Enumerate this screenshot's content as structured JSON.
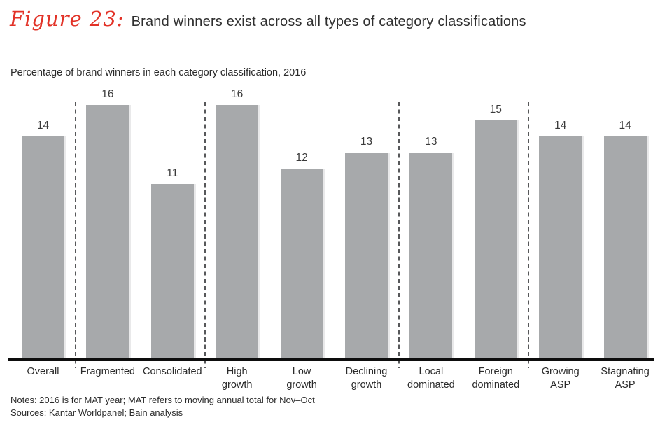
{
  "figure": {
    "label": "Figure 23:",
    "title": "Brand winners exist across all types of category classifications"
  },
  "chart_data": {
    "type": "bar",
    "title": "Percentage of brand winners in each category classification, 2016",
    "categories": [
      "Overall",
      "Fragmented",
      "Consolidated",
      "High growth",
      "Low growth",
      "Declining growth",
      "Local dominated",
      "Foreign dominated",
      "Growing ASP",
      "Stagnating ASP"
    ],
    "values": [
      14,
      16,
      11,
      16,
      12,
      13,
      13,
      15,
      14,
      14
    ],
    "value_labels_shown": true,
    "xlabel": "",
    "ylabel": "",
    "ylim": [
      0,
      16
    ],
    "grid": false,
    "legend": null,
    "separators_after_category_indices": [
      0,
      2,
      5,
      7
    ],
    "bar_color": "#a7a9ab",
    "separator_color": "#57585a",
    "axis_color": "#0d0d0d",
    "accent_red": "#e23227"
  },
  "footer": {
    "notes": "Notes: 2016 is for MAT year; MAT refers to moving annual total for Nov–Oct",
    "sources": "Sources: Kantar Worldpanel; Bain analysis"
  }
}
